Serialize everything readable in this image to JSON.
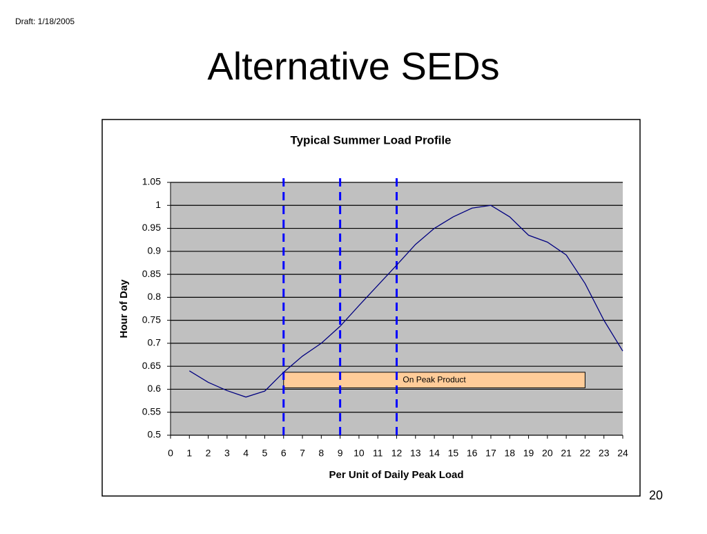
{
  "slide": {
    "draft": "Draft: 1/18/2005",
    "title": "Alternative SEDs",
    "page_number": "20"
  },
  "chart_data": {
    "type": "line",
    "title": "Typical Summer Load Profile",
    "x_label": "Per Unit of Daily Peak Load",
    "y_label": "Hour of Day",
    "x": [
      1,
      2,
      3,
      4,
      5,
      6,
      7,
      8,
      9,
      10,
      11,
      12,
      13,
      14,
      15,
      16,
      17,
      18,
      19,
      20,
      21,
      22,
      23,
      24
    ],
    "series": [
      {
        "color": "#000080",
        "values": [
          0.64,
          0.615,
          0.597,
          0.583,
          0.596,
          0.637,
          0.672,
          0.7,
          0.737,
          0.782,
          0.826,
          0.87,
          0.915,
          0.95,
          0.975,
          0.994,
          1.0,
          0.975,
          0.935,
          0.92,
          0.892,
          0.83,
          0.75,
          0.683
        ]
      }
    ],
    "xlim": [
      0,
      24
    ],
    "xticks": [
      0,
      1,
      2,
      3,
      4,
      5,
      6,
      7,
      8,
      9,
      10,
      11,
      12,
      13,
      14,
      15,
      16,
      17,
      18,
      19,
      20,
      21,
      22,
      23,
      24
    ],
    "ylim": [
      0.5,
      1.05
    ],
    "yticks": [
      0.5,
      0.55,
      0.6,
      0.65,
      0.7,
      0.75,
      0.8,
      0.85,
      0.9,
      0.95,
      1,
      1.05
    ],
    "grid": true,
    "plot_background": "#c0c0c0",
    "vlines": {
      "color": "#0000ff",
      "x": [
        6,
        9,
        12
      ]
    },
    "annotation": {
      "text": "On Peak Product",
      "x": [
        6,
        22
      ],
      "y": [
        0.603,
        0.637
      ],
      "color": "#ffcc99"
    }
  }
}
